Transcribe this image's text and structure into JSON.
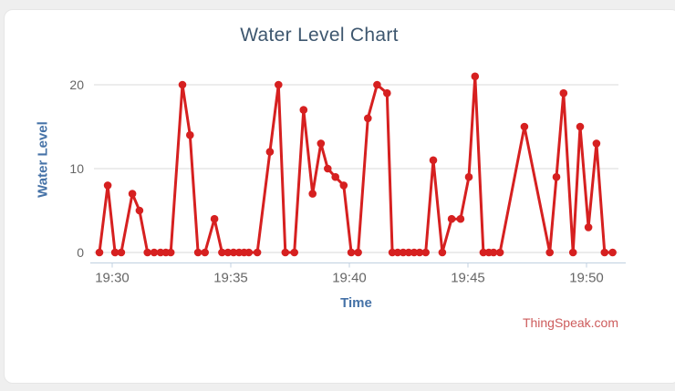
{
  "page": {
    "background_color": "#efefef",
    "card_color": "#ffffff",
    "card_border_color": "#e6e6e6"
  },
  "chart_data": {
    "type": "line",
    "title": "Water Level Chart",
    "xlabel": "Time",
    "ylabel": "Water Level",
    "credits": "ThingSpeak.com",
    "legend": "none",
    "grid": "horizontal-only",
    "x_unit": "clock time (19:xx), stored as decimal minutes after 19:00",
    "xlim": [
      29.2,
      51.4
    ],
    "ylim": [
      0,
      21.5
    ],
    "x_ticks": [
      {
        "label": "19:30",
        "value": 30
      },
      {
        "label": "19:35",
        "value": 35
      },
      {
        "label": "19:40",
        "value": 40
      },
      {
        "label": "19:45",
        "value": 45
      },
      {
        "label": "19:50",
        "value": 50
      }
    ],
    "y_ticks": [
      {
        "label": "0",
        "value": 0
      },
      {
        "label": "10",
        "value": 10
      },
      {
        "label": "20",
        "value": 20
      }
    ],
    "series": [
      {
        "name": "Water Level",
        "color": "#d62020",
        "marker": "circle",
        "points": [
          [
            29.46,
            0
          ],
          [
            29.81,
            8
          ],
          [
            30.12,
            0
          ],
          [
            30.38,
            0
          ],
          [
            30.85,
            7
          ],
          [
            31.15,
            5
          ],
          [
            31.49,
            0
          ],
          [
            31.77,
            0
          ],
          [
            32.04,
            0
          ],
          [
            32.26,
            0
          ],
          [
            32.47,
            0
          ],
          [
            32.96,
            20
          ],
          [
            33.28,
            14
          ],
          [
            33.62,
            0
          ],
          [
            33.91,
            0
          ],
          [
            34.31,
            4
          ],
          [
            34.63,
            0
          ],
          [
            34.88,
            0
          ],
          [
            35.12,
            0
          ],
          [
            35.35,
            0
          ],
          [
            35.56,
            0
          ],
          [
            35.76,
            0
          ],
          [
            36.12,
            0
          ],
          [
            36.65,
            12
          ],
          [
            37.01,
            20
          ],
          [
            37.3,
            0
          ],
          [
            37.68,
            0
          ],
          [
            38.07,
            17
          ],
          [
            38.45,
            7
          ],
          [
            38.8,
            13
          ],
          [
            39.09,
            10
          ],
          [
            39.41,
            9
          ],
          [
            39.76,
            8
          ],
          [
            40.08,
            0
          ],
          [
            40.37,
            0
          ],
          [
            40.78,
            16
          ],
          [
            41.17,
            20
          ],
          [
            41.59,
            19
          ],
          [
            41.81,
            0
          ],
          [
            42.04,
            0
          ],
          [
            42.27,
            0
          ],
          [
            42.5,
            0
          ],
          [
            42.73,
            0
          ],
          [
            42.96,
            0
          ],
          [
            43.22,
            0
          ],
          [
            43.54,
            11
          ],
          [
            43.92,
            0
          ],
          [
            44.31,
            4
          ],
          [
            44.69,
            4
          ],
          [
            45.04,
            9
          ],
          [
            45.3,
            21
          ],
          [
            45.65,
            0
          ],
          [
            45.88,
            0
          ],
          [
            46.08,
            0
          ],
          [
            46.35,
            0
          ],
          [
            47.38,
            15
          ],
          [
            48.45,
            0
          ],
          [
            48.73,
            9
          ],
          [
            49.03,
            19
          ],
          [
            49.43,
            0
          ],
          [
            49.73,
            15
          ],
          [
            50.08,
            3
          ],
          [
            50.42,
            13
          ],
          [
            50.76,
            0
          ],
          [
            51.1,
            0
          ]
        ]
      }
    ],
    "colors": {
      "title": "#3E576F",
      "axis_title": "#4572A7",
      "tick_label": "#666666",
      "grid_line": "#d8d8d8",
      "axis_line": "#c0d0e0",
      "series": "#d62020",
      "credits": "#CD5C5C"
    }
  }
}
